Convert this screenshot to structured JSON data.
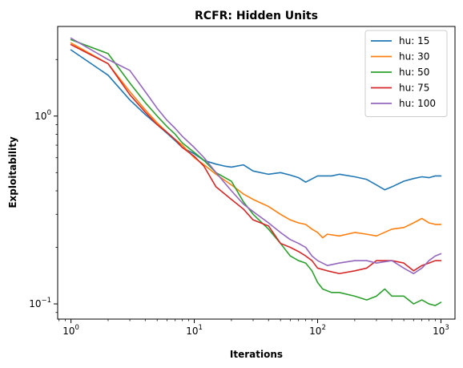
{
  "chart_data": {
    "type": "line",
    "title": "RCFR: Hidden Units",
    "xlabel": "Iterations",
    "ylabel": "Exploitability",
    "xscale": "log",
    "yscale": "log",
    "xlim": [
      0.78,
      1300
    ],
    "ylim": [
      0.083,
      3.0
    ],
    "x_ticks": [
      1,
      10,
      100,
      1000
    ],
    "x_tick_labels": [
      {
        "base": "10",
        "exp": "0"
      },
      {
        "base": "10",
        "exp": "1"
      },
      {
        "base": "10",
        "exp": "2"
      },
      {
        "base": "10",
        "exp": "3"
      }
    ],
    "y_ticks": [
      0.1,
      1
    ],
    "y_tick_labels": [
      {
        "base": "10",
        "exp": "−1"
      },
      {
        "base": "10",
        "exp": "0"
      }
    ],
    "grid": false,
    "legend_position": "top-right",
    "series": [
      {
        "name": "hu: 15",
        "color": "#1f77b4",
        "points": [
          [
            1,
            2.25
          ],
          [
            2,
            1.65
          ],
          [
            3,
            1.22
          ],
          [
            4,
            1.02
          ],
          [
            5,
            0.9
          ],
          [
            6,
            0.81
          ],
          [
            7,
            0.74
          ],
          [
            8,
            0.68
          ],
          [
            10,
            0.63
          ],
          [
            12,
            0.58
          ],
          [
            15,
            0.555
          ],
          [
            18,
            0.54
          ],
          [
            20,
            0.535
          ],
          [
            25,
            0.55
          ],
          [
            30,
            0.51
          ],
          [
            40,
            0.49
          ],
          [
            50,
            0.5
          ],
          [
            60,
            0.485
          ],
          [
            70,
            0.47
          ],
          [
            80,
            0.445
          ],
          [
            100,
            0.48
          ],
          [
            130,
            0.48
          ],
          [
            150,
            0.49
          ],
          [
            200,
            0.475
          ],
          [
            250,
            0.46
          ],
          [
            300,
            0.43
          ],
          [
            350,
            0.405
          ],
          [
            400,
            0.42
          ],
          [
            500,
            0.45
          ],
          [
            600,
            0.465
          ],
          [
            700,
            0.475
          ],
          [
            800,
            0.47
          ],
          [
            900,
            0.48
          ],
          [
            1000,
            0.48
          ]
        ]
      },
      {
        "name": "hu: 30",
        "color": "#ff7f0e",
        "points": [
          [
            1,
            2.45
          ],
          [
            2,
            1.9
          ],
          [
            3,
            1.35
          ],
          [
            4,
            1.08
          ],
          [
            5,
            0.92
          ],
          [
            6,
            0.82
          ],
          [
            7,
            0.75
          ],
          [
            8,
            0.7
          ],
          [
            10,
            0.6
          ],
          [
            12,
            0.55
          ],
          [
            15,
            0.49
          ],
          [
            20,
            0.43
          ],
          [
            25,
            0.385
          ],
          [
            30,
            0.36
          ],
          [
            40,
            0.33
          ],
          [
            50,
            0.3
          ],
          [
            60,
            0.28
          ],
          [
            70,
            0.27
          ],
          [
            80,
            0.265
          ],
          [
            90,
            0.25
          ],
          [
            100,
            0.24
          ],
          [
            110,
            0.225
          ],
          [
            120,
            0.235
          ],
          [
            150,
            0.23
          ],
          [
            200,
            0.24
          ],
          [
            250,
            0.235
          ],
          [
            300,
            0.23
          ],
          [
            400,
            0.25
          ],
          [
            500,
            0.255
          ],
          [
            600,
            0.27
          ],
          [
            700,
            0.285
          ],
          [
            800,
            0.27
          ],
          [
            900,
            0.265
          ],
          [
            1000,
            0.265
          ]
        ]
      },
      {
        "name": "hu: 50",
        "color": "#2ca02c",
        "points": [
          [
            1,
            2.55
          ],
          [
            2,
            2.15
          ],
          [
            3,
            1.5
          ],
          [
            4,
            1.18
          ],
          [
            5,
            1.0
          ],
          [
            6,
            0.88
          ],
          [
            7,
            0.8
          ],
          [
            8,
            0.72
          ],
          [
            10,
            0.64
          ],
          [
            12,
            0.58
          ],
          [
            15,
            0.5
          ],
          [
            20,
            0.45
          ],
          [
            25,
            0.35
          ],
          [
            30,
            0.3
          ],
          [
            40,
            0.25
          ],
          [
            50,
            0.21
          ],
          [
            60,
            0.18
          ],
          [
            70,
            0.17
          ],
          [
            80,
            0.165
          ],
          [
            90,
            0.15
          ],
          [
            100,
            0.13
          ],
          [
            110,
            0.12
          ],
          [
            130,
            0.115
          ],
          [
            150,
            0.115
          ],
          [
            200,
            0.11
          ],
          [
            250,
            0.105
          ],
          [
            300,
            0.11
          ],
          [
            350,
            0.12
          ],
          [
            400,
            0.11
          ],
          [
            500,
            0.11
          ],
          [
            600,
            0.1
          ],
          [
            700,
            0.105
          ],
          [
            800,
            0.1
          ],
          [
            900,
            0.098
          ],
          [
            1000,
            0.102
          ]
        ]
      },
      {
        "name": "hu: 75",
        "color": "#d62728",
        "points": [
          [
            1,
            2.4
          ],
          [
            2,
            1.9
          ],
          [
            3,
            1.3
          ],
          [
            4,
            1.05
          ],
          [
            5,
            0.9
          ],
          [
            6,
            0.82
          ],
          [
            7,
            0.75
          ],
          [
            8,
            0.68
          ],
          [
            10,
            0.61
          ],
          [
            12,
            0.54
          ],
          [
            15,
            0.42
          ],
          [
            20,
            0.36
          ],
          [
            25,
            0.32
          ],
          [
            30,
            0.28
          ],
          [
            40,
            0.26
          ],
          [
            50,
            0.21
          ],
          [
            60,
            0.2
          ],
          [
            70,
            0.19
          ],
          [
            80,
            0.18
          ],
          [
            90,
            0.17
          ],
          [
            100,
            0.155
          ],
          [
            120,
            0.15
          ],
          [
            150,
            0.145
          ],
          [
            200,
            0.15
          ],
          [
            250,
            0.155
          ],
          [
            300,
            0.17
          ],
          [
            400,
            0.17
          ],
          [
            500,
            0.165
          ],
          [
            600,
            0.15
          ],
          [
            700,
            0.16
          ],
          [
            800,
            0.165
          ],
          [
            900,
            0.17
          ],
          [
            1000,
            0.17
          ]
        ]
      },
      {
        "name": "hu: 100",
        "color": "#9467bd",
        "points": [
          [
            1,
            2.6
          ],
          [
            2,
            2.0
          ],
          [
            3,
            1.75
          ],
          [
            4,
            1.35
          ],
          [
            5,
            1.1
          ],
          [
            6,
            0.95
          ],
          [
            7,
            0.86
          ],
          [
            8,
            0.78
          ],
          [
            10,
            0.68
          ],
          [
            12,
            0.6
          ],
          [
            15,
            0.5
          ],
          [
            20,
            0.4
          ],
          [
            25,
            0.34
          ],
          [
            30,
            0.31
          ],
          [
            40,
            0.27
          ],
          [
            50,
            0.24
          ],
          [
            60,
            0.22
          ],
          [
            70,
            0.21
          ],
          [
            80,
            0.2
          ],
          [
            90,
            0.18
          ],
          [
            100,
            0.17
          ],
          [
            120,
            0.16
          ],
          [
            150,
            0.165
          ],
          [
            200,
            0.17
          ],
          [
            250,
            0.17
          ],
          [
            300,
            0.165
          ],
          [
            400,
            0.17
          ],
          [
            500,
            0.155
          ],
          [
            600,
            0.145
          ],
          [
            700,
            0.155
          ],
          [
            800,
            0.17
          ],
          [
            900,
            0.18
          ],
          [
            1000,
            0.185
          ]
        ]
      }
    ]
  }
}
